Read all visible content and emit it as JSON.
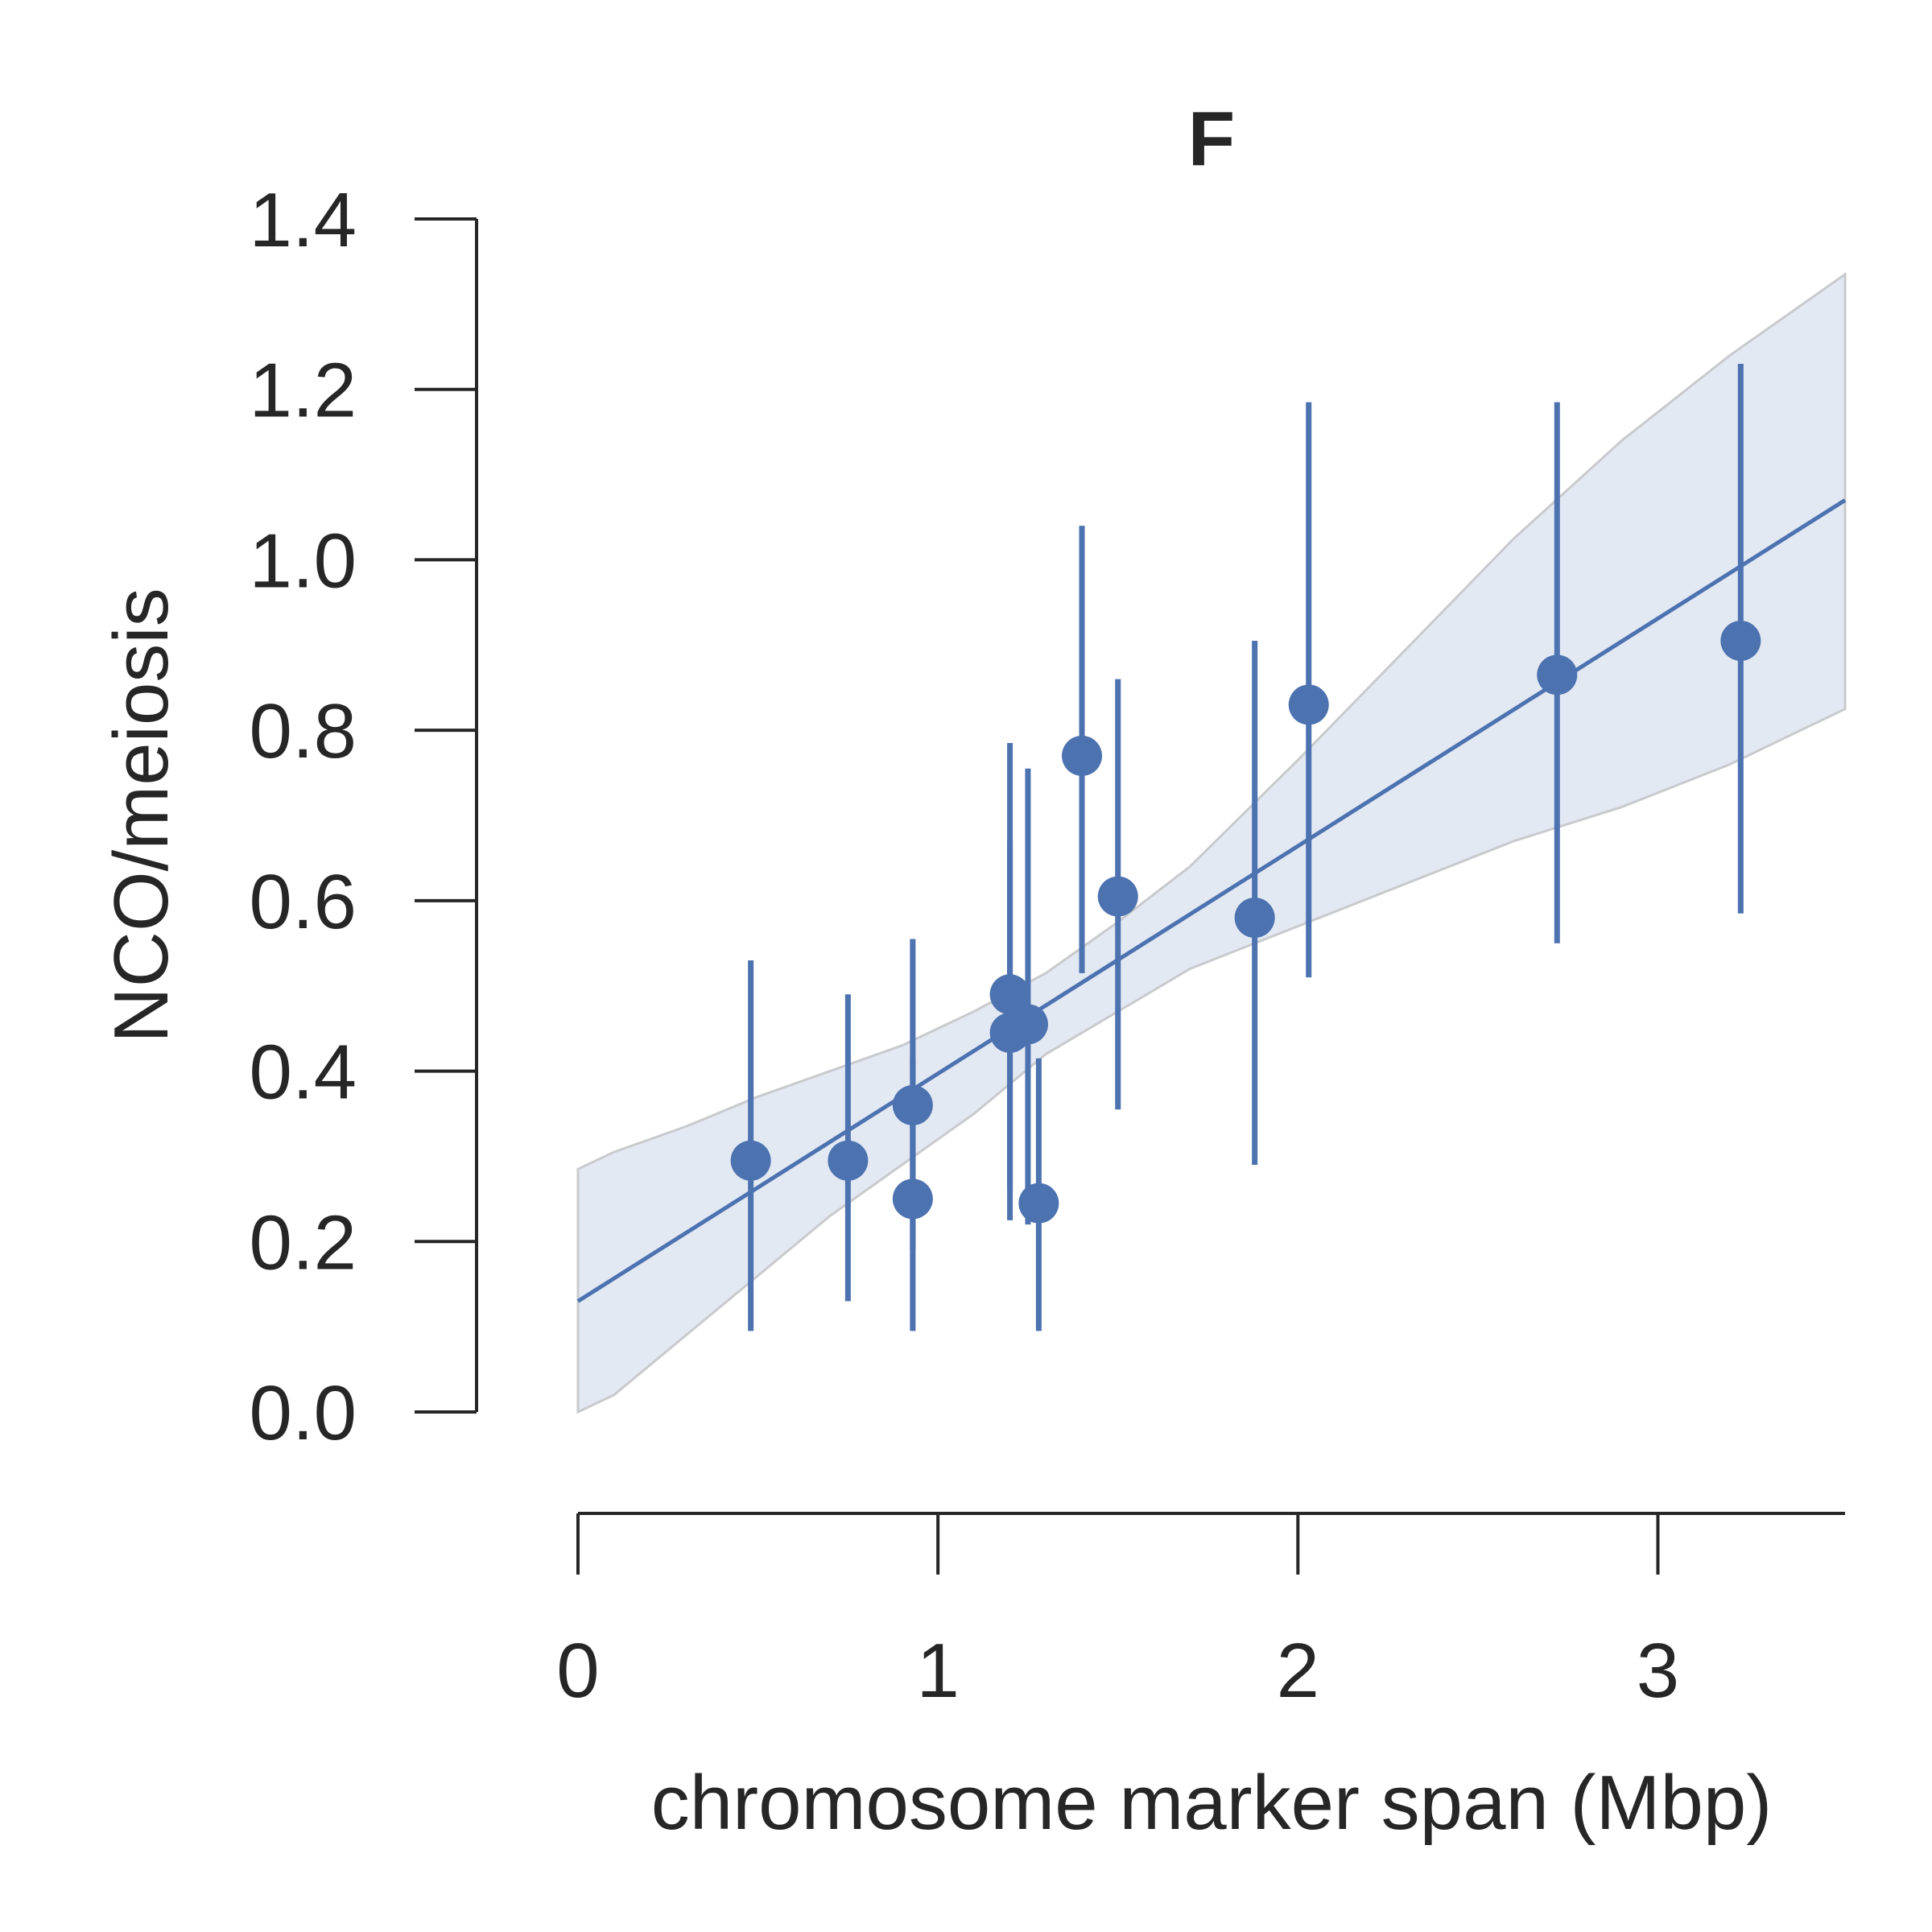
{
  "chart_data": {
    "type": "scatter",
    "title": "F",
    "xlabel": "chromosome marker span (Mbp)",
    "ylabel": "NCO/meiosis",
    "xlim": [
      0,
      3.52
    ],
    "ylim": [
      0,
      1.4
    ],
    "xticks": [
      0,
      1,
      2,
      3
    ],
    "yticks": [
      0.0,
      0.2,
      0.4,
      0.6,
      0.8,
      1.0,
      1.2,
      1.4
    ],
    "xtick_labels": [
      "0",
      "1",
      "2",
      "3"
    ],
    "ytick_labels": [
      "0.0",
      "0.2",
      "0.4",
      "0.6",
      "0.8",
      "1.0",
      "1.2",
      "1.4"
    ],
    "grid": false,
    "colors": {
      "series": "#4c72b0",
      "band_fill": "#e3e9f3",
      "band_edge": "#c8cacd",
      "axis": "#262626"
    },
    "points": [
      {
        "x": 0.48,
        "y": 0.295,
        "y_low": 0.095,
        "y_high": 0.53
      },
      {
        "x": 0.75,
        "y": 0.295,
        "y_low": 0.13,
        "y_high": 0.49
      },
      {
        "x": 0.93,
        "y": 0.36,
        "y_low": 0.19,
        "y_high": 0.415
      },
      {
        "x": 0.93,
        "y": 0.25,
        "y_low": 0.095,
        "y_high": 0.555
      },
      {
        "x": 1.2,
        "y": 0.49,
        "y_low": 0.26,
        "y_high": 0.785
      },
      {
        "x": 1.2,
        "y": 0.445,
        "y_low": 0.225,
        "y_high": 0.67
      },
      {
        "x": 1.25,
        "y": 0.455,
        "y_low": 0.22,
        "y_high": 0.755
      },
      {
        "x": 1.28,
        "y": 0.245,
        "y_low": 0.095,
        "y_high": 0.415
      },
      {
        "x": 1.4,
        "y": 0.77,
        "y_low": 0.515,
        "y_high": 1.04
      },
      {
        "x": 1.5,
        "y": 0.605,
        "y_low": 0.355,
        "y_high": 0.86
      },
      {
        "x": 1.88,
        "y": 0.58,
        "y_low": 0.29,
        "y_high": 0.905
      },
      {
        "x": 2.03,
        "y": 0.83,
        "y_low": 0.51,
        "y_high": 1.185
      },
      {
        "x": 2.72,
        "y": 0.865,
        "y_low": 0.55,
        "y_high": 1.185
      },
      {
        "x": 3.23,
        "y": 0.905,
        "y_low": 0.585,
        "y_high": 1.23
      }
    ],
    "fit_line": {
      "x": [
        0,
        3.52
      ],
      "y": [
        0.13,
        1.07
      ]
    },
    "confidence_band": {
      "x": [
        0,
        0.1,
        0.3,
        0.5,
        0.7,
        0.9,
        1.1,
        1.3,
        1.5,
        1.7,
        2.0,
        2.3,
        2.6,
        2.9,
        3.2,
        3.52
      ],
      "lower": [
        -0.02,
        0.02,
        0.09,
        0.16,
        0.23,
        0.29,
        0.35,
        0.42,
        0.47,
        0.52,
        0.57,
        0.62,
        0.67,
        0.71,
        0.76,
        0.825
      ],
      "upper": [
        0.285,
        0.305,
        0.335,
        0.37,
        0.4,
        0.43,
        0.47,
        0.515,
        0.575,
        0.64,
        0.765,
        0.895,
        1.025,
        1.14,
        1.24,
        1.335
      ]
    }
  }
}
